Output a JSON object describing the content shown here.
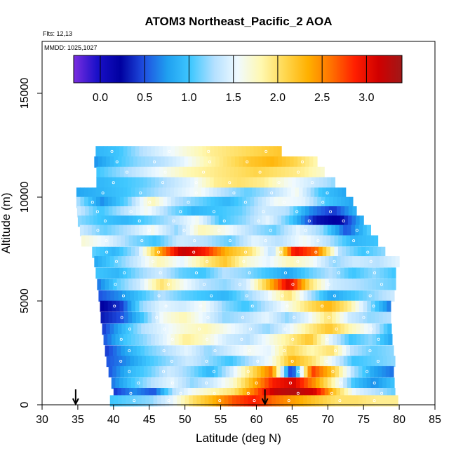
{
  "chart_data": {
    "type": "heatmap",
    "title": "ATOM3 Northeast_Pacific_2 AOA",
    "annotations": [
      "Flts: 12,13",
      "MMDD: 1025,1027"
    ],
    "xlabel": "Latitude (deg N)",
    "ylabel": "Altitude (m)",
    "xlim": [
      30,
      85
    ],
    "ylim": [
      0,
      17500
    ],
    "x_ticks": [
      "30",
      "35",
      "40",
      "45",
      "50",
      "55",
      "60",
      "65",
      "70",
      "75",
      "80",
      "85"
    ],
    "y_ticks": [
      "0",
      "5000",
      "10000",
      "15000"
    ],
    "colorbar": {
      "range": [
        -0.3,
        3.4
      ],
      "tick_labels": [
        "0.0",
        "0.5",
        "1.0",
        "1.5",
        "2.0",
        "2.5",
        "3.0"
      ],
      "tick_values": [
        0.0,
        0.5,
        1.0,
        1.5,
        2.0,
        2.5,
        3.0
      ],
      "colors": [
        "#7b2ee0",
        "#1a10c8",
        "#0000a0",
        "#1f4fe0",
        "#1fa0f0",
        "#40c8ff",
        "#b4e0ff",
        "#f0faff",
        "#fff8b0",
        "#ffd850",
        "#ffb000",
        "#ff7000",
        "#ff1e00",
        "#d00000",
        "#a01818"
      ]
    },
    "arrows_at_latitude": [
      34.7,
      61.2
    ],
    "bands": [
      {
        "alt": 12200,
        "lat_start": 37.5,
        "lat_end": 63.5,
        "values": [
          0.9,
          1.0,
          1.3,
          1.5,
          1.7,
          1.9,
          2.0,
          2.1,
          2.2
        ]
      },
      {
        "alt": 11700,
        "lat_start": 37.3,
        "lat_end": 68.5,
        "values": [
          0.7,
          1.0,
          1.2,
          1.3,
          1.5,
          1.8,
          2.0,
          2.2,
          2.3,
          2.1,
          1.8
        ]
      },
      {
        "alt": 11200,
        "lat_start": 37.6,
        "lat_end": 69.5,
        "values": [
          1.0,
          1.2,
          1.4,
          1.6,
          1.8,
          1.9,
          2.0,
          2.1,
          2.0,
          1.9,
          1.7
        ]
      },
      {
        "alt": 10700,
        "lat_start": 37.6,
        "lat_end": 71.0,
        "values": [
          0.9,
          1.0,
          1.1,
          1.3,
          1.5,
          1.9,
          2.0,
          1.9,
          1.6,
          1.4,
          1.2
        ]
      },
      {
        "alt": 10200,
        "lat_start": 34.8,
        "lat_end": 72.5,
        "values": [
          0.8,
          0.9,
          1.0,
          1.2,
          1.4,
          1.6,
          1.3,
          1.1,
          1.3,
          1.6,
          1.0,
          0.8
        ]
      },
      {
        "alt": 9750,
        "lat_start": 34.8,
        "lat_end": 73.5,
        "values": [
          1.3,
          0.7,
          1.1,
          1.8,
          1.3,
          1.1,
          0.9,
          1.2,
          1.6,
          1.5,
          1.0,
          0.8
        ]
      },
      {
        "alt": 9300,
        "lat_start": 34.9,
        "lat_end": 74.0,
        "values": [
          1.4,
          1.0,
          1.3,
          1.6,
          1.2,
          0.9,
          1.0,
          1.1,
          1.4,
          1.3,
          0.7,
          0.4,
          0.9
        ]
      },
      {
        "alt": 8850,
        "lat_start": 35.0,
        "lat_end": 75.0,
        "values": [
          1.2,
          1.0,
          0.9,
          1.1,
          1.3,
          1.6,
          1.0,
          1.2,
          1.5,
          1.0,
          0.3,
          0.2,
          0.9
        ]
      },
      {
        "alt": 8400,
        "lat_start": 35.3,
        "lat_end": 76.0,
        "values": [
          1.4,
          1.1,
          1.3,
          1.6,
          1.2,
          1.8,
          1.6,
          1.3,
          1.1,
          1.5,
          1.2,
          0.5,
          1.1
        ]
      },
      {
        "alt": 7900,
        "lat_start": 35.5,
        "lat_end": 77.0,
        "values": [
          1.7,
          1.5,
          1.2,
          1.0,
          1.4,
          1.3,
          1.1,
          1.5,
          1.3,
          1.6,
          1.3,
          0.9,
          1.0
        ]
      },
      {
        "alt": 7350,
        "lat_start": 37.0,
        "lat_end": 78.0,
        "values": [
          1.1,
          0.9,
          1.3,
          2.4,
          3.2,
          2.9,
          2.3,
          2.0,
          1.3,
          3.0,
          2.6,
          1.3,
          1.0,
          1.2
        ]
      },
      {
        "alt": 6900,
        "lat_start": 37.3,
        "lat_end": 80.0,
        "values": [
          0.8,
          1.1,
          1.4,
          1.8,
          1.5,
          1.9,
          2.2,
          1.7,
          1.5,
          1.8,
          1.6,
          1.2,
          1.4,
          1.3,
          1.5
        ]
      },
      {
        "alt": 6350,
        "lat_start": 37.5,
        "lat_end": 79.5,
        "values": [
          1.0,
          0.9,
          1.2,
          1.4,
          1.1,
          1.0,
          1.3,
          1.2,
          1.0,
          0.8,
          1.1,
          1.3,
          1.0,
          1.2,
          1.0
        ]
      },
      {
        "alt": 5800,
        "lat_start": 37.7,
        "lat_end": 79.5,
        "values": [
          0.6,
          1.1,
          1.4,
          2.0,
          1.6,
          1.3,
          1.2,
          1.4,
          2.2,
          3.1,
          2.0,
          1.4,
          1.3,
          1.2,
          1.1
        ]
      },
      {
        "alt": 5250,
        "lat_start": 37.9,
        "lat_end": 79.3,
        "values": [
          0.5,
          0.7,
          1.0,
          1.3,
          1.1,
          1.0,
          0.9,
          1.2,
          1.5,
          2.0,
          1.3,
          0.8,
          1.0,
          1.2,
          1.4
        ]
      },
      {
        "alt": 4750,
        "lat_start": 38.1,
        "lat_end": 78.8,
        "values": [
          0.2,
          0.4,
          1.2,
          1.5,
          1.4,
          1.6,
          1.2,
          1.0,
          1.3,
          1.6,
          2.0,
          2.3,
          1.9,
          1.2,
          0.6
        ]
      },
      {
        "alt": 4200,
        "lat_start": 38.2,
        "lat_end": 78.8,
        "values": [
          0.3,
          0.5,
          1.0,
          1.6,
          1.8,
          1.5,
          1.2,
          1.3,
          1.5,
          1.2,
          1.5,
          2.0,
          1.4,
          1.2,
          1.3
        ]
      },
      {
        "alt": 3650,
        "lat_start": 38.4,
        "lat_end": 78.9,
        "values": [
          0.4,
          0.9,
          1.3,
          1.5,
          1.7,
          1.8,
          1.6,
          1.4,
          1.2,
          1.5,
          1.9,
          2.2,
          1.8,
          1.5,
          0.9
        ]
      },
      {
        "alt": 3150,
        "lat_start": 38.6,
        "lat_end": 79.0,
        "values": [
          0.5,
          1.0,
          1.2,
          1.5,
          1.9,
          1.7,
          1.4,
          1.3,
          1.6,
          1.9,
          2.2,
          1.5,
          1.0,
          1.2,
          0.8
        ]
      },
      {
        "alt": 2600,
        "lat_start": 38.8,
        "lat_end": 79.2,
        "values": [
          0.4,
          0.8,
          1.1,
          1.3,
          1.5,
          1.2,
          1.4,
          1.6,
          1.5,
          2.1,
          1.8,
          2.0,
          1.3,
          1.1,
          1.2
        ]
      },
      {
        "alt": 2100,
        "lat_start": 39.0,
        "lat_end": 79.4,
        "values": [
          0.5,
          0.7,
          1.0,
          1.2,
          1.4,
          1.2,
          1.0,
          1.3,
          1.6,
          2.3,
          2.0,
          1.5,
          1.0,
          1.1,
          1.2
        ]
      },
      {
        "alt": 1600,
        "lat_start": 39.3,
        "lat_end": 79.2,
        "values": [
          0.5,
          0.9,
          1.1,
          1.4,
          1.2,
          0.9,
          1.4,
          2.0,
          2.6,
          0.3,
          2.8,
          2.2,
          1.3,
          0.8,
          0.6
        ]
      },
      {
        "alt": 1050,
        "lat_start": 39.7,
        "lat_end": 79.3,
        "values": [
          0.6,
          1.0,
          1.3,
          1.5,
          1.2,
          1.4,
          1.7,
          2.3,
          2.9,
          3.1,
          2.5,
          1.8,
          1.0,
          0.7,
          1.0
        ]
      },
      {
        "alt": 550,
        "lat_start": 40.0,
        "lat_end": 79.4,
        "values": [
          0.4,
          0.7,
          0.5,
          1.3,
          1.6,
          1.8,
          2.0,
          2.6,
          3.2,
          3.3,
          3.1,
          2.2,
          1.5,
          1.3,
          1.1
        ]
      },
      {
        "alt": 200,
        "lat_start": 39.5,
        "lat_end": 79.8,
        "values": [
          1.0,
          1.1,
          1.2,
          1.5,
          2.0,
          2.3,
          2.7,
          2.9,
          2.6,
          2.4,
          2.2,
          2.0,
          2.0,
          1.9,
          1.9
        ]
      }
    ]
  }
}
